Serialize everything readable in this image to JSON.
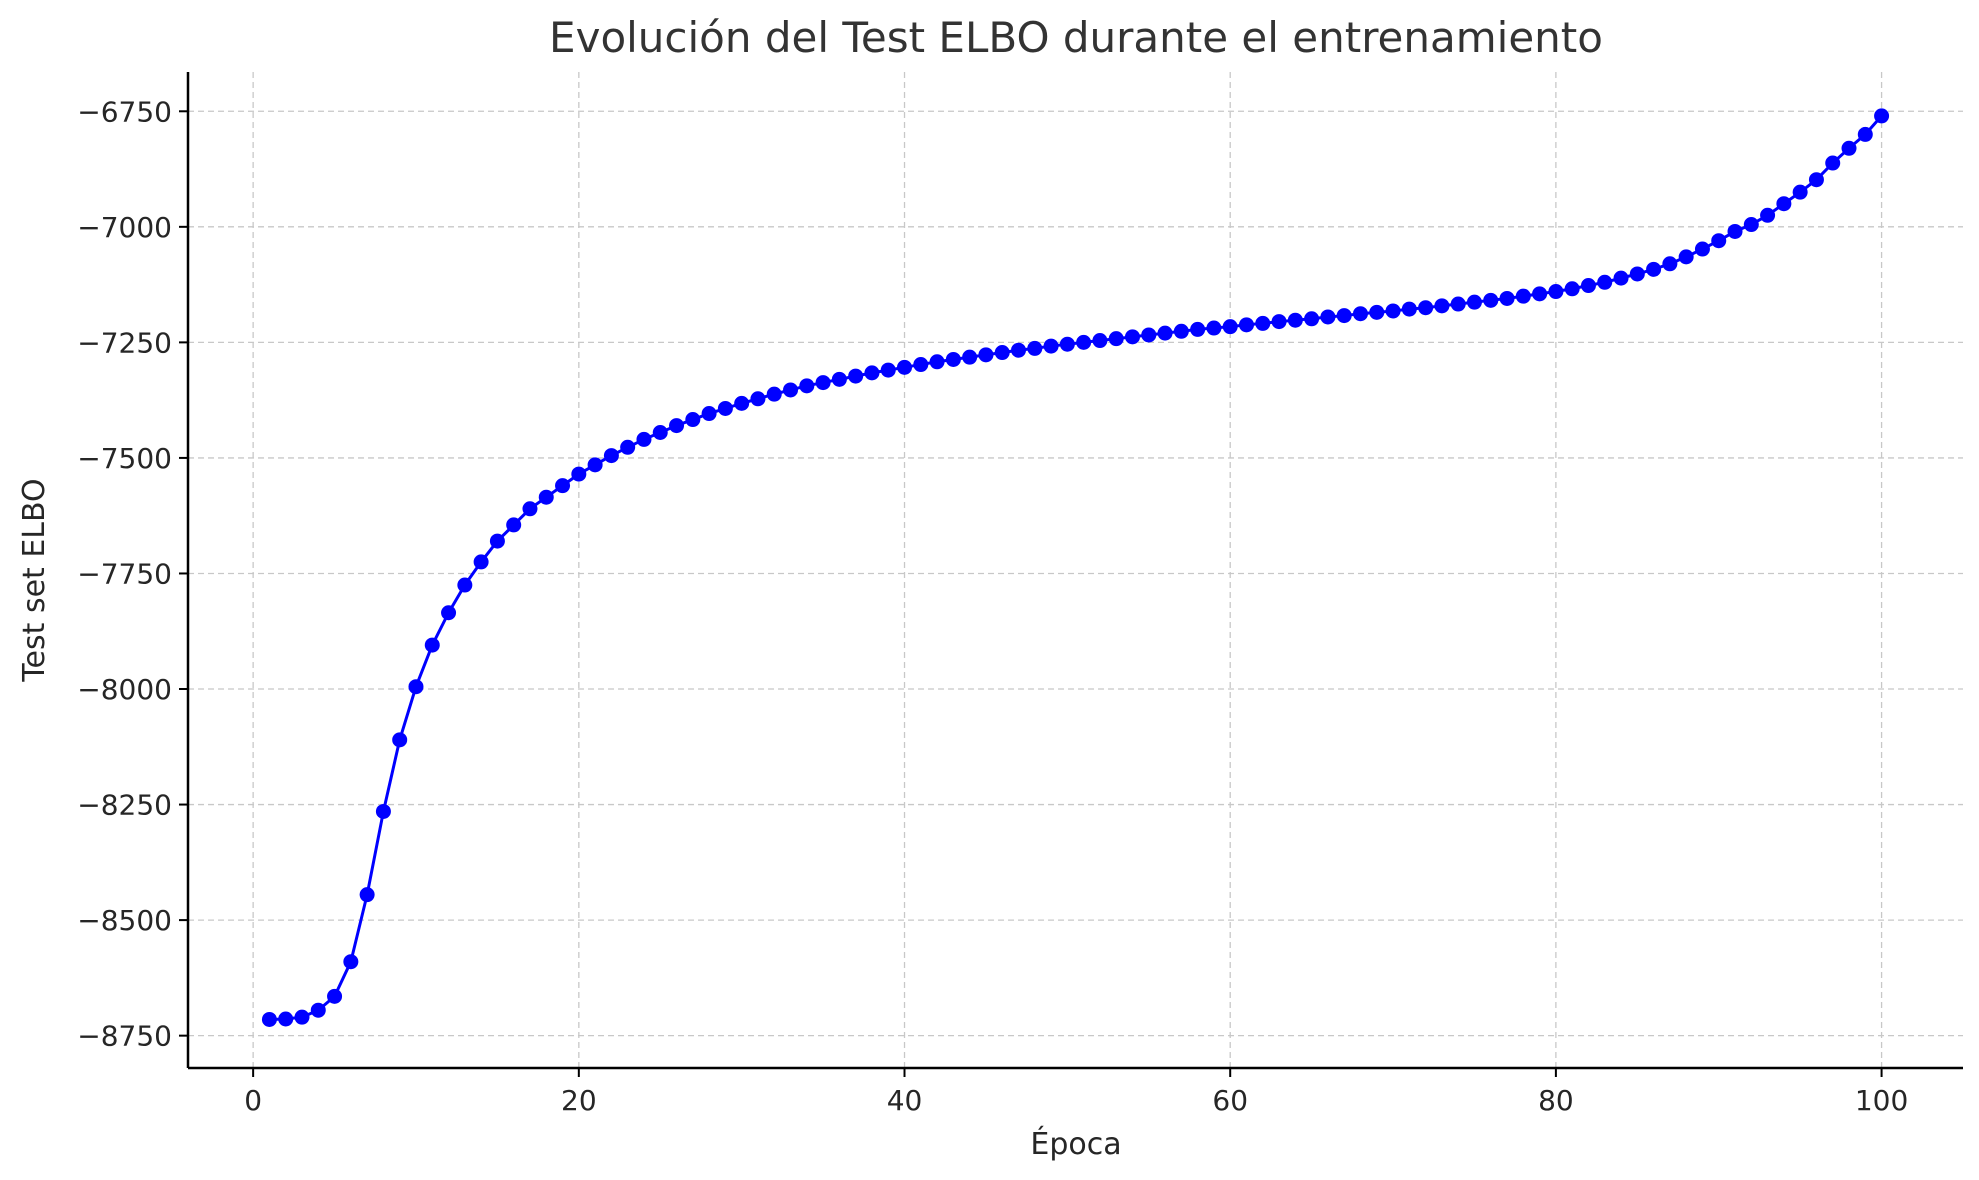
{
  "chart_data": {
    "type": "line",
    "title": "Evolución del Test ELBO durante el entrenamiento",
    "xlabel": "Época",
    "ylabel": "Test set ELBO",
    "xlim": [
      -4,
      105
    ],
    "ylim": [
      -8820,
      -6665
    ],
    "xticks": [
      0,
      20,
      40,
      60,
      80,
      100
    ],
    "yticks": [
      -6750,
      -7000,
      -7250,
      -7500,
      -7750,
      -8000,
      -8250,
      -8500,
      -8750
    ],
    "grid": true,
    "legend": "none",
    "series": [
      {
        "color": "#0000ff",
        "marker": "circle",
        "x": [
          1,
          2,
          3,
          4,
          5,
          6,
          7,
          8,
          9,
          10,
          11,
          12,
          13,
          14,
          15,
          16,
          17,
          18,
          19,
          20,
          21,
          22,
          23,
          24,
          25,
          26,
          27,
          28,
          29,
          30,
          31,
          32,
          33,
          34,
          35,
          36,
          37,
          38,
          39,
          40,
          41,
          42,
          43,
          44,
          45,
          46,
          47,
          48,
          49,
          50,
          51,
          52,
          53,
          54,
          55,
          56,
          57,
          58,
          59,
          60,
          61,
          62,
          63,
          64,
          65,
          66,
          67,
          68,
          69,
          70,
          71,
          72,
          73,
          74,
          75,
          76,
          77,
          78,
          79,
          80,
          81,
          82,
          83,
          84,
          85,
          86,
          87,
          88,
          89,
          90,
          91,
          92,
          93,
          94,
          95,
          96,
          97,
          98,
          99,
          100
        ],
        "y": [
          -8715,
          -8714,
          -8710,
          -8695,
          -8665,
          -8590,
          -8445,
          -8265,
          -8110,
          -7995,
          -7905,
          -7835,
          -7775,
          -7725,
          -7680,
          -7645,
          -7610,
          -7585,
          -7560,
          -7535,
          -7515,
          -7495,
          -7477,
          -7460,
          -7445,
          -7430,
          -7417,
          -7404,
          -7393,
          -7382,
          -7372,
          -7362,
          -7353,
          -7344,
          -7337,
          -7330,
          -7323,
          -7316,
          -7310,
          -7304,
          -7298,
          -7292,
          -7287,
          -7282,
          -7277,
          -7272,
          -7267,
          -7263,
          -7258,
          -7254,
          -7250,
          -7246,
          -7242,
          -7238,
          -7234,
          -7230,
          -7226,
          -7222,
          -7219,
          -7216,
          -7212,
          -7209,
          -7205,
          -7202,
          -7199,
          -7195,
          -7192,
          -7188,
          -7185,
          -7182,
          -7178,
          -7175,
          -7171,
          -7167,
          -7163,
          -7159,
          -7155,
          -7150,
          -7145,
          -7140,
          -7134,
          -7127,
          -7120,
          -7111,
          -7102,
          -7092,
          -7080,
          -7065,
          -7048,
          -7030,
          -7010,
          -6995,
          -6975,
          -6950,
          -6925,
          -6898,
          -6862,
          -6830,
          -6800,
          -6760
        ]
      }
    ]
  }
}
